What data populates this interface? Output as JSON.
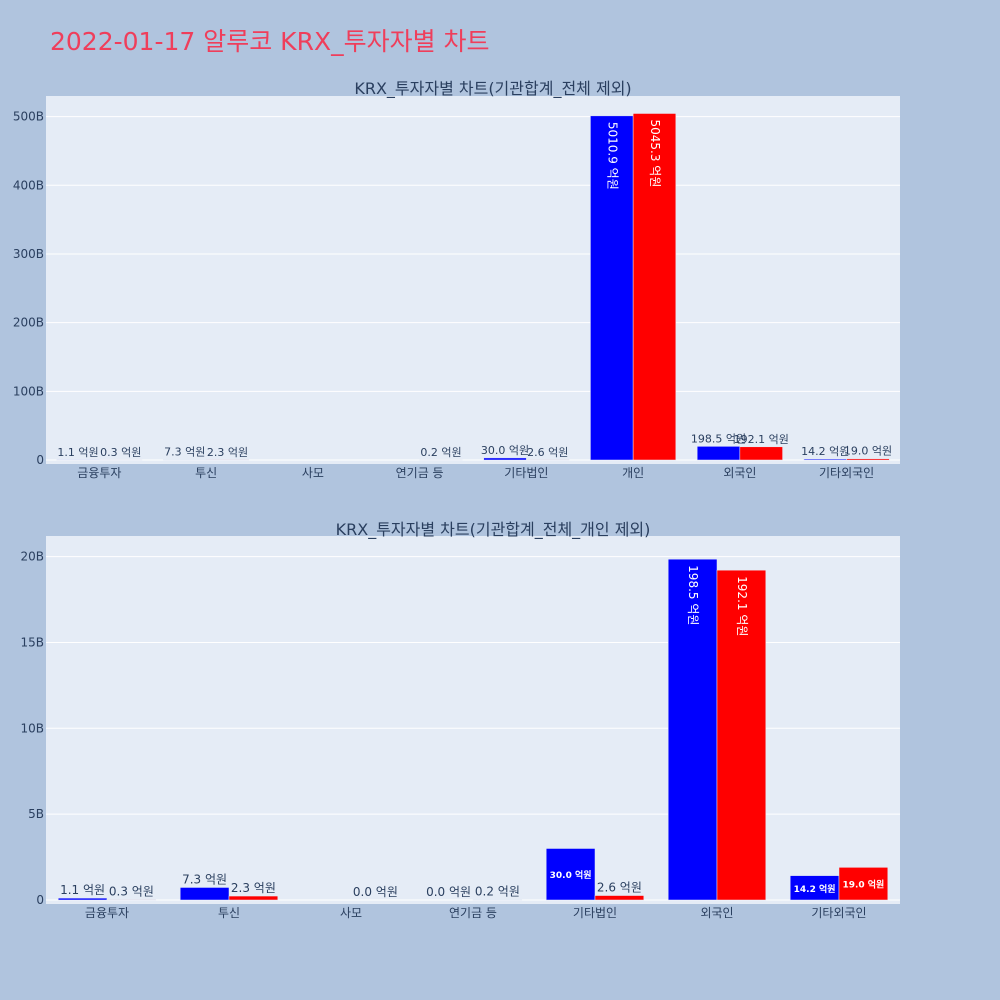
{
  "page_title": "2022-01-17 알루코 KRX_투자자별 차트",
  "colors": {
    "title": "#ef3e5b",
    "background": "#b0c4de",
    "plot_bg": "#e5ecf6",
    "series1": "#0000ff",
    "series2": "#ff0000"
  },
  "chart_data": [
    {
      "type": "bar",
      "title": "KRX_투자자별 차트(기관합계_전체 제외)",
      "categories": [
        "금융투자",
        "투신",
        "사모",
        "연기금 등",
        "기타법인",
        "개인",
        "외국인",
        "기타외국인"
      ],
      "ylim": [
        0,
        530
      ],
      "yticks": [
        0,
        100,
        200,
        300,
        400,
        500
      ],
      "ytick_labels": [
        "0",
        "100B",
        "200B",
        "300B",
        "400B",
        "500B"
      ],
      "grid": true,
      "series": [
        {
          "color": "#0000ff",
          "values": [
            0.11,
            0.73,
            0,
            0,
            3.0,
            501.09,
            19.85,
            1.42
          ],
          "labels": [
            "1.1 억원",
            "7.3 억원",
            "",
            "",
            "30.0 억원",
            "5010.9 억원",
            "198.5 억원",
            "14.2 억원"
          ]
        },
        {
          "color": "#ff0000",
          "values": [
            0.03,
            0.23,
            0,
            0.02,
            0.26,
            504.53,
            19.21,
            1.9
          ],
          "labels": [
            "0.3 억원",
            "2.3 억원",
            "",
            "0.2 억원",
            "2.6 억원",
            "5045.3 억원",
            "192.1 억원",
            "19.0 억원"
          ]
        }
      ]
    },
    {
      "type": "bar",
      "title": "KRX_투자자별 차트(기관합계_전체_개인 제외)",
      "categories": [
        "금융투자",
        "투신",
        "사모",
        "연기금 등",
        "기타법인",
        "외국인",
        "기타외국인"
      ],
      "ylim": [
        0,
        21.2
      ],
      "yticks": [
        0,
        5,
        10,
        15,
        20
      ],
      "ytick_labels": [
        "0",
        "5B",
        "10B",
        "15B",
        "20B"
      ],
      "grid": true,
      "series": [
        {
          "color": "#0000ff",
          "values": [
            0.11,
            0.73,
            0,
            0,
            3.0,
            19.85,
            1.42
          ],
          "labels": [
            "1.1 억원",
            "7.3 억원",
            "",
            "0.0 억원",
            "30.0 억원",
            "198.5 억원",
            "14.2 억원"
          ]
        },
        {
          "color": "#ff0000",
          "values": [
            0.03,
            0.23,
            0,
            0.02,
            0.26,
            19.21,
            1.9
          ],
          "labels": [
            "0.3 억원",
            "2.3 억원",
            "0.0 억원",
            "0.2 억원",
            "2.6 억원",
            "192.1 억원",
            "19.0 억원"
          ]
        }
      ]
    }
  ]
}
